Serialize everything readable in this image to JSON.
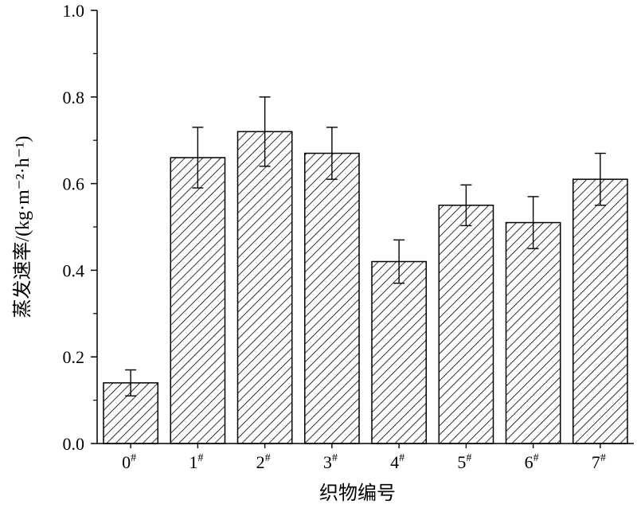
{
  "chart_data": {
    "type": "bar",
    "categories": [
      "0",
      "1",
      "2",
      "3",
      "4",
      "5",
      "6",
      "7"
    ],
    "category_superscript": "#",
    "values": [
      0.14,
      0.66,
      0.72,
      0.67,
      0.42,
      0.55,
      0.51,
      0.61
    ],
    "error_bars": [
      0.03,
      0.07,
      0.08,
      0.06,
      0.05,
      0.047,
      0.06,
      0.06
    ],
    "xlabel": "织物编号",
    "ylabel": "蒸发速率/(kg·m⁻²·h⁻¹)",
    "ylim": [
      0.0,
      1.0
    ],
    "yticks": [
      "0.0",
      "0.2",
      "0.4",
      "0.6",
      "0.8",
      "1.0"
    ],
    "bar_fill": "diagonal-hatch",
    "grid": false,
    "legend": "none",
    "colors": {
      "bar_edge": "#000000",
      "hatch": "#000000",
      "background": "#ffffff"
    }
  }
}
